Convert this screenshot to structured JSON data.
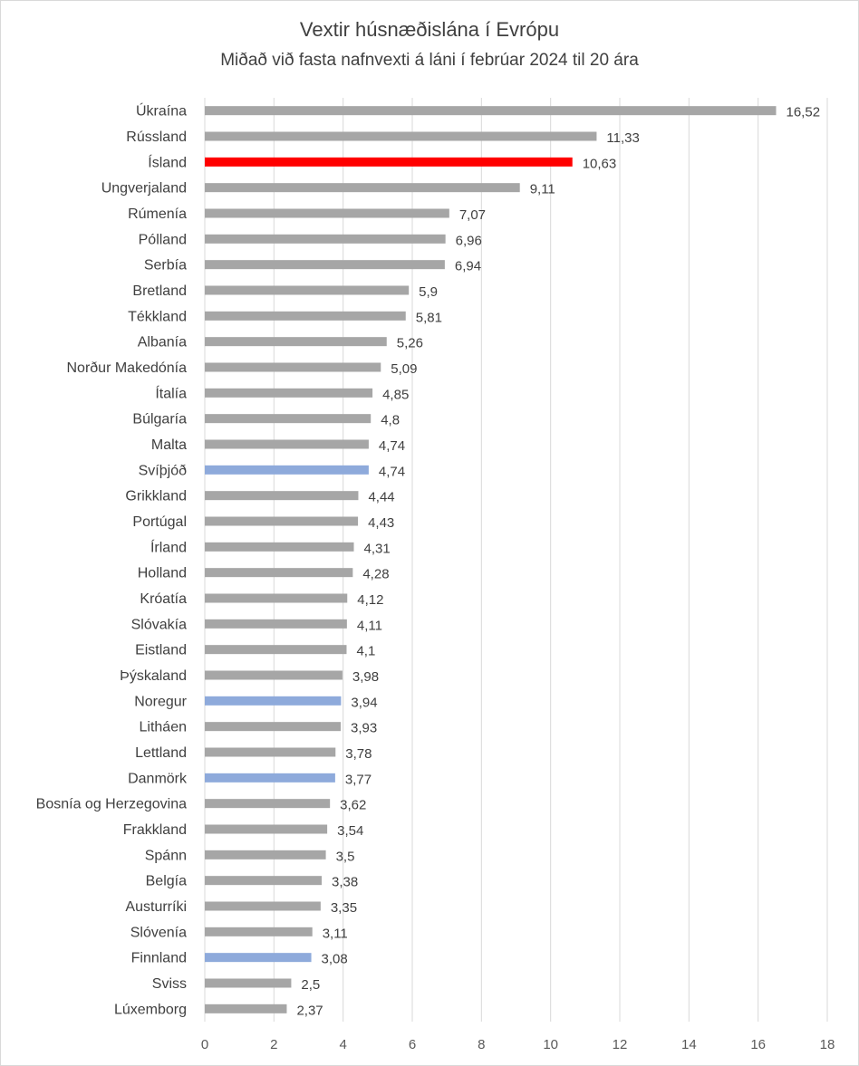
{
  "chart_data": {
    "type": "bar",
    "orientation": "horizontal",
    "title": "Vextir húsnæðislána  í Evrópu",
    "subtitle": "Miðað við fasta nafnvexti á láni í febrúar 2024 til 20 ára",
    "xlim": [
      0,
      18
    ],
    "xticks": [
      0,
      2,
      4,
      6,
      8,
      10,
      12,
      14,
      16,
      18
    ],
    "grid": "vertical",
    "legend": "none",
    "colors": {
      "default": "#a6a6a6",
      "iceland": "#ff0000",
      "nordic": "#8eaadb"
    },
    "categories": [
      "Úkraína",
      "Rússland",
      "Ísland",
      "Ungverjaland",
      "Rúmenía",
      "Pólland",
      "Serbía",
      "Bretland",
      "Tékkland",
      "Albanía",
      "Norður Makedónía",
      "Ítalía",
      "Búlgaría",
      "Malta",
      "Svíþjóð",
      "Grikkland",
      "Portúgal",
      "Írland",
      "Holland",
      "Króatía",
      "Slóvakía",
      "Eistland",
      "Þýskaland",
      "Noregur",
      "Litháen",
      "Lettland",
      "Danmörk",
      "Bosnía og Herzegovina",
      "Frakkland",
      "Spánn",
      "Belgía",
      "Austurríki",
      "Slóvenía",
      "Finnland",
      "Sviss",
      "Lúxemborg"
    ],
    "values": [
      16.52,
      11.33,
      10.63,
      9.11,
      7.07,
      6.96,
      6.94,
      5.9,
      5.81,
      5.26,
      5.09,
      4.85,
      4.8,
      4.74,
      4.74,
      4.44,
      4.43,
      4.31,
      4.28,
      4.12,
      4.11,
      4.1,
      3.98,
      3.94,
      3.93,
      3.78,
      3.77,
      3.62,
      3.54,
      3.5,
      3.38,
      3.35,
      3.11,
      3.08,
      2.5,
      2.37
    ],
    "value_labels": [
      "16,52",
      "11,33",
      "10,63",
      "9,11",
      "7,07",
      "6,96",
      "6,94",
      "5,9",
      "5,81",
      "5,26",
      "5,09",
      "4,85",
      "4,8",
      "4,74",
      "4,74",
      "4,44",
      "4,43",
      "4,31",
      "4,28",
      "4,12",
      "4,11",
      "4,1",
      "3,98",
      "3,94",
      "3,93",
      "3,78",
      "3,77",
      "3,62",
      "3,54",
      "3,5",
      "3,38",
      "3,35",
      "3,11",
      "3,08",
      "2,5",
      "2,37"
    ],
    "bar_colors": [
      "default",
      "default",
      "iceland",
      "default",
      "default",
      "default",
      "default",
      "default",
      "default",
      "default",
      "default",
      "default",
      "default",
      "default",
      "nordic",
      "default",
      "default",
      "default",
      "default",
      "default",
      "default",
      "default",
      "default",
      "nordic",
      "default",
      "default",
      "nordic",
      "default",
      "default",
      "default",
      "default",
      "default",
      "default",
      "nordic",
      "default",
      "default"
    ]
  }
}
